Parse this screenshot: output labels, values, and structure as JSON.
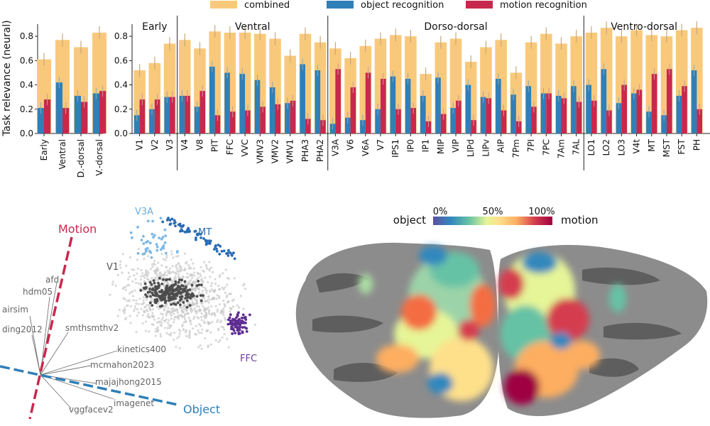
{
  "legend": [
    {
      "label": "combined",
      "color": "#f9c97b"
    },
    {
      "label": "object recognition",
      "color": "#2f7fb8"
    },
    {
      "label": "motion recognition",
      "color": "#c8284d"
    }
  ],
  "chart_data": [
    {
      "type": "bar",
      "ylabel": "Task relevance (neural)",
      "ylim": [
        0,
        0.9
      ],
      "yticks": [
        "0.0",
        "0.2",
        "0.4",
        "0.6",
        "0.8"
      ],
      "grid": false,
      "categories": [
        "Early",
        "Ventral",
        "D.-dorsal",
        "V.-dorsal"
      ],
      "series": [
        {
          "name": "combined",
          "values": [
            0.61,
            0.77,
            0.71,
            0.83
          ]
        },
        {
          "name": "object recognition",
          "values": [
            0.21,
            0.42,
            0.31,
            0.33
          ]
        },
        {
          "name": "motion recognition",
          "values": [
            0.28,
            0.21,
            0.26,
            0.35
          ]
        }
      ]
    },
    {
      "type": "bar",
      "ylim": [
        0,
        0.9
      ],
      "yticks": [
        "0.0",
        "0.2",
        "0.4",
        "0.6",
        "0.8"
      ],
      "grid": false,
      "groups": [
        {
          "name": "Early",
          "categories": [
            "V1",
            "V2",
            "V3"
          ],
          "combined": [
            0.52,
            0.58,
            0.74
          ],
          "object": [
            0.15,
            0.2,
            0.3
          ],
          "motion": [
            0.28,
            0.28,
            0.3
          ]
        },
        {
          "name": "Ventral",
          "categories": [
            "V4",
            "V8",
            "PIT",
            "FFC",
            "VVC",
            "VMV3",
            "VMV2",
            "VMV1",
            "PHA3",
            "PHA2"
          ],
          "combined": [
            0.77,
            0.7,
            0.84,
            0.83,
            0.83,
            0.82,
            0.78,
            0.64,
            0.82,
            0.75
          ],
          "object": [
            0.31,
            0.22,
            0.55,
            0.5,
            0.49,
            0.44,
            0.38,
            0.25,
            0.57,
            0.52
          ],
          "motion": [
            0.31,
            0.35,
            0.15,
            0.18,
            0.19,
            0.22,
            0.24,
            0.27,
            0.12,
            0.11
          ]
        },
        {
          "name": "Dorso-dorsal",
          "categories": [
            "V3A",
            "V6",
            "V6A",
            "V7",
            "IPS1",
            "IP0",
            "IP1",
            "MIP",
            "VIP",
            "LIPd",
            "LIPv",
            "AIP",
            "7Pm",
            "7PI",
            "7PC",
            "7Am",
            "7AL"
          ],
          "combined": [
            0.7,
            0.62,
            0.72,
            0.78,
            0.81,
            0.8,
            0.49,
            0.75,
            0.78,
            0.59,
            0.71,
            0.77,
            0.5,
            0.75,
            0.82,
            0.74,
            0.8
          ],
          "object": [
            0.08,
            0.13,
            0.11,
            0.2,
            0.47,
            0.45,
            0.31,
            0.46,
            0.21,
            0.4,
            0.3,
            0.45,
            0.32,
            0.39,
            0.33,
            0.31,
            0.39
          ],
          "motion": [
            0.53,
            0.38,
            0.5,
            0.45,
            0.2,
            0.21,
            0.1,
            0.16,
            0.27,
            0.11,
            0.29,
            0.19,
            0.1,
            0.22,
            0.33,
            0.29,
            0.26
          ]
        },
        {
          "name": "Ventro-dorsal",
          "categories": [
            "LO1",
            "LO2",
            "LO3",
            "V4t",
            "MT",
            "MST",
            "FST",
            "PH"
          ],
          "combined": [
            0.83,
            0.87,
            0.8,
            0.85,
            0.81,
            0.8,
            0.85,
            0.87
          ],
          "object": [
            0.4,
            0.53,
            0.25,
            0.33,
            0.18,
            0.15,
            0.31,
            0.52
          ],
          "motion": [
            0.27,
            0.19,
            0.4,
            0.36,
            0.49,
            0.53,
            0.39,
            0.2
          ]
        }
      ]
    }
  ],
  "scatter": {
    "axes": {
      "motion": "Motion",
      "object": "Object"
    },
    "area_labels": [
      {
        "text": "V3A",
        "color": "#6aaee0"
      },
      {
        "text": "MT",
        "color": "#2a6cb5"
      },
      {
        "text": "V1",
        "color": "#555555"
      },
      {
        "text": "FFC",
        "color": "#6b3a9c"
      }
    ],
    "models": [
      "afd",
      "hdm05",
      "airsim",
      "ding2012",
      "smthsmthv2",
      "kinetics400",
      "mcmahon2023",
      "majajhong2015",
      "imagenet",
      "vggfacev2"
    ]
  },
  "brain_map": {
    "left_label": "object",
    "right_label": "motion",
    "colorbar_ticks": [
      "0%",
      "50%",
      "100%"
    ]
  }
}
